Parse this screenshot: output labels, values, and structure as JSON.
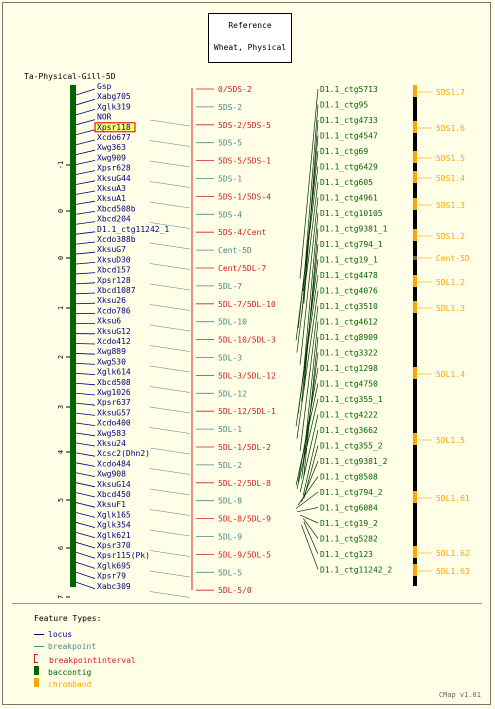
{
  "reference": {
    "line1": "Reference",
    "line2": "Wheat, Physical"
  },
  "map_title": "Ta-Physical-Gill-5D",
  "colors": {
    "locus": "#000080",
    "breakpoint": "#4a8a8a",
    "interval": "#cc2222",
    "baccontig": "#006600",
    "chromband": "#ffa500",
    "tick": "#000000"
  },
  "axis_ticks": [
    "-1",
    "0",
    "0",
    "1",
    "2",
    "3",
    "4",
    "5",
    "6",
    "7"
  ],
  "loci": [
    {
      "label": "Gsp",
      "highlight": false
    },
    {
      "label": "Xabg705",
      "highlight": false
    },
    {
      "label": "Xglk319",
      "highlight": false
    },
    {
      "label": "NOR",
      "highlight": false
    },
    {
      "label": "Xpsr118",
      "highlight": true
    },
    {
      "label": "Xcdo677",
      "highlight": false
    },
    {
      "label": "Xwg363",
      "highlight": false
    },
    {
      "label": "Xwg909",
      "highlight": false
    },
    {
      "label": "Xpsr628",
      "highlight": false
    },
    {
      "label": "XksuG44",
      "highlight": false
    },
    {
      "label": "XksuA3",
      "highlight": false
    },
    {
      "label": "XksuA1",
      "highlight": false
    },
    {
      "label": "Xbcd508b",
      "highlight": false
    },
    {
      "label": "Xbcd204",
      "highlight": false
    },
    {
      "label": "D1.1_ctg11242_1",
      "highlight": false
    },
    {
      "label": "Xcdo388b",
      "highlight": false
    },
    {
      "label": "XksuG7",
      "highlight": false
    },
    {
      "label": "XksuD30",
      "highlight": false
    },
    {
      "label": "Xbcd157",
      "highlight": false
    },
    {
      "label": "Xpsr128",
      "highlight": false
    },
    {
      "label": "Xbcd1087",
      "highlight": false
    },
    {
      "label": "Xksu26",
      "highlight": false
    },
    {
      "label": "Xcdo786",
      "highlight": false
    },
    {
      "label": "Xksu6",
      "highlight": false
    },
    {
      "label": "XksuG12",
      "highlight": false
    },
    {
      "label": "Xcdo412",
      "highlight": false
    },
    {
      "label": "Xwg889",
      "highlight": false
    },
    {
      "label": "Xwg530",
      "highlight": false
    },
    {
      "label": "Xglk614",
      "highlight": false
    },
    {
      "label": "Xbcd508",
      "highlight": false
    },
    {
      "label": "Xwg1026",
      "highlight": false
    },
    {
      "label": "Xpsr637",
      "highlight": false
    },
    {
      "label": "XksuG57",
      "highlight": false
    },
    {
      "label": "Xcdo400",
      "highlight": false
    },
    {
      "label": "Xwg583",
      "highlight": false
    },
    {
      "label": "Xksu24",
      "highlight": false
    },
    {
      "label": "Xcsc2(Dhn2)",
      "highlight": false
    },
    {
      "label": "Xcdo484",
      "highlight": false
    },
    {
      "label": "Xwg908",
      "highlight": false
    },
    {
      "label": "XksuG14",
      "highlight": false
    },
    {
      "label": "Xbcd450",
      "highlight": false
    },
    {
      "label": "XksuF1",
      "highlight": false
    },
    {
      "label": "Xglk165",
      "highlight": false
    },
    {
      "label": "Xglk354",
      "highlight": false
    },
    {
      "label": "Xglk621",
      "highlight": false
    },
    {
      "label": "Xpsr370",
      "highlight": false
    },
    {
      "label": "Xpsr115(Pk)",
      "highlight": false
    },
    {
      "label": "Xglk695",
      "highlight": false
    },
    {
      "label": "Xpsr79",
      "highlight": false
    },
    {
      "label": "Xabc309",
      "highlight": false
    }
  ],
  "breakpoints": [
    {
      "label": "0/5DS-2",
      "kind": "interval"
    },
    {
      "label": "5DS-2",
      "kind": "breakpoint"
    },
    {
      "label": "5DS-2/5DS-5",
      "kind": "interval"
    },
    {
      "label": "5DS-5",
      "kind": "breakpoint"
    },
    {
      "label": "5DS-5/5DS-1",
      "kind": "interval"
    },
    {
      "label": "5DS-1",
      "kind": "breakpoint"
    },
    {
      "label": "5DS-1/5DS-4",
      "kind": "interval"
    },
    {
      "label": "5DS-4",
      "kind": "breakpoint"
    },
    {
      "label": "5DS-4/Cent",
      "kind": "interval"
    },
    {
      "label": "Cent-5D",
      "kind": "breakpoint"
    },
    {
      "label": "Cent/5DL-7",
      "kind": "interval"
    },
    {
      "label": "5DL-7",
      "kind": "breakpoint"
    },
    {
      "label": "5DL-7/5DL-10",
      "kind": "interval"
    },
    {
      "label": "5DL-10",
      "kind": "breakpoint"
    },
    {
      "label": "5DL-10/5DL-3",
      "kind": "interval"
    },
    {
      "label": "5DL-3",
      "kind": "breakpoint"
    },
    {
      "label": "5DL-3/5DL-12",
      "kind": "interval"
    },
    {
      "label": "5DL-12",
      "kind": "breakpoint"
    },
    {
      "label": "5DL-12/5DL-1",
      "kind": "interval"
    },
    {
      "label": "5DL-1",
      "kind": "breakpoint"
    },
    {
      "label": "5DL-1/5DL-2",
      "kind": "interval"
    },
    {
      "label": "5DL-2",
      "kind": "breakpoint"
    },
    {
      "label": "5DL-2/5DL-8",
      "kind": "interval"
    },
    {
      "label": "5DL-8",
      "kind": "breakpoint"
    },
    {
      "label": "5DL-8/5DL-9",
      "kind": "interval"
    },
    {
      "label": "5DL-9",
      "kind": "breakpoint"
    },
    {
      "label": "5DL-9/5DL-5",
      "kind": "interval"
    },
    {
      "label": "5DL-5",
      "kind": "breakpoint"
    },
    {
      "label": "5DL-5/0",
      "kind": "interval"
    }
  ],
  "contigs": [
    "D1.1_ctg5713",
    "D1.1_ctg95",
    "D1.1_ctg4733",
    "D1.1_ctg4547",
    "D1.1_ctg69",
    "D1.1_ctg6429",
    "D1.1_ctg605",
    "D1.1_ctg4961",
    "D1.1_ctg10105",
    "D1.1_ctg9381_1",
    "D1.1_ctg794_1",
    "D1.1_ctg19_1",
    "D1.1_ctg4478",
    "D1.1_ctg4076",
    "D1.1_ctg3510",
    "D1.1_ctg4612",
    "D1.1_ctg8909",
    "D1.1_ctg3322",
    "D1.1_ctg1298",
    "D1.1_ctg4750",
    "D1.1_ctg355_1",
    "D1.1_ctg4222",
    "D1.1_ctg3662",
    "D1.1_ctg355_2",
    "D1.1_ctg9381_2",
    "D1.1_ctg8508",
    "D1.1_ctg794_2",
    "D1.1_ctg6084",
    "D1.1_ctg19_2",
    "D1.1_ctg5282",
    "D1.1_ctg123",
    "D1.1_ctg11242_2"
  ],
  "chrombands": [
    "5DS1.7",
    "5DS1.6",
    "5DS1.5",
    "5DS1.4",
    "5DS1.3",
    "5DS1.2",
    "Cent-5D",
    "5DL1.2",
    "5DL1.3",
    "5DL1.4",
    "5DL1.5",
    "5DL1.61",
    "5DL1.62",
    "5DL1.63"
  ],
  "legend": {
    "title": "Feature Types:",
    "items": [
      {
        "label": "locus",
        "kind": "locus"
      },
      {
        "label": "breakpoint",
        "kind": "breakpoint"
      },
      {
        "label": "breakpointinterval",
        "kind": "interval"
      },
      {
        "label": "baccontig",
        "kind": "baccontig"
      },
      {
        "label": "chromband",
        "kind": "chromband"
      }
    ]
  },
  "credit": "CMap v1.01"
}
